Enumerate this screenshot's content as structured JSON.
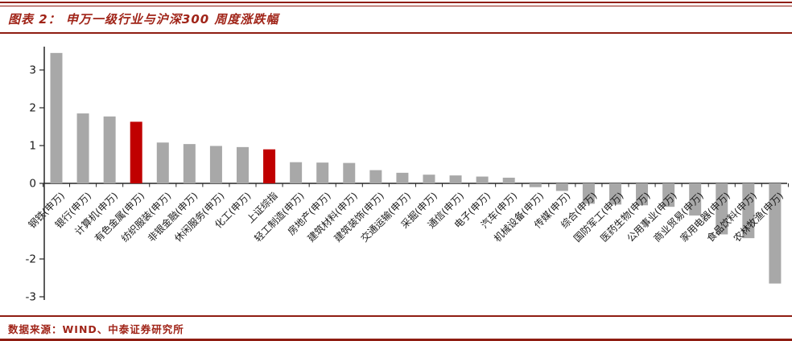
{
  "header": {
    "title": "图表 2： 申万一级行业与沪深300 周度涨跌幅"
  },
  "footer": {
    "source": "数据来源：WIND、中泰证券研究所"
  },
  "colors": {
    "accent_text": "#A02418",
    "rule_line": "#8F1D12",
    "bar_gray": "#A8A8A8",
    "bar_red": "#C00000",
    "axis": "#262626",
    "tick_text": "#1a1a1a"
  },
  "chart_data": {
    "type": "bar",
    "title": "申万一级行业与沪深300 周度涨跌幅",
    "xlabel": "",
    "ylabel": "",
    "ylim": [
      -3,
      3.5
    ],
    "y_ticks": [
      3,
      2,
      1,
      0,
      -2,
      -3
    ],
    "grid": false,
    "legend": "none",
    "categories": [
      "钢铁(申万)",
      "银行(申万)",
      "计算机(申万)",
      "有色金属(申万)",
      "纺织服装(申万)",
      "非银金融(申万)",
      "休闲服务(申万)",
      "化工(申万)",
      "上证综指",
      "轻工制造(申万)",
      "房地产(申万)",
      "建筑材料(申万)",
      "建筑装饰(申万)",
      "交通运输(申万)",
      "采掘(申万)",
      "通信(申万)",
      "电子(申万)",
      "汽车(申万)",
      "机械设备(申万)",
      "传媒(申万)",
      "综合(申万)",
      "国防军工(申万)",
      "医药生物(申万)",
      "公用事业(申万)",
      "商业贸易(申万)",
      "家用电器(申万)",
      "食品饮料(申万)",
      "农林牧渔(申万)"
    ],
    "values": [
      3.45,
      1.85,
      1.77,
      1.63,
      1.08,
      1.04,
      0.99,
      0.96,
      0.9,
      0.56,
      0.55,
      0.54,
      0.35,
      0.28,
      0.23,
      0.21,
      0.18,
      0.15,
      -0.1,
      -0.2,
      -0.54,
      -0.56,
      -0.58,
      -0.62,
      -0.85,
      -1.35,
      -1.45,
      -2.65
    ],
    "highlight_indices": [
      3,
      8
    ]
  }
}
